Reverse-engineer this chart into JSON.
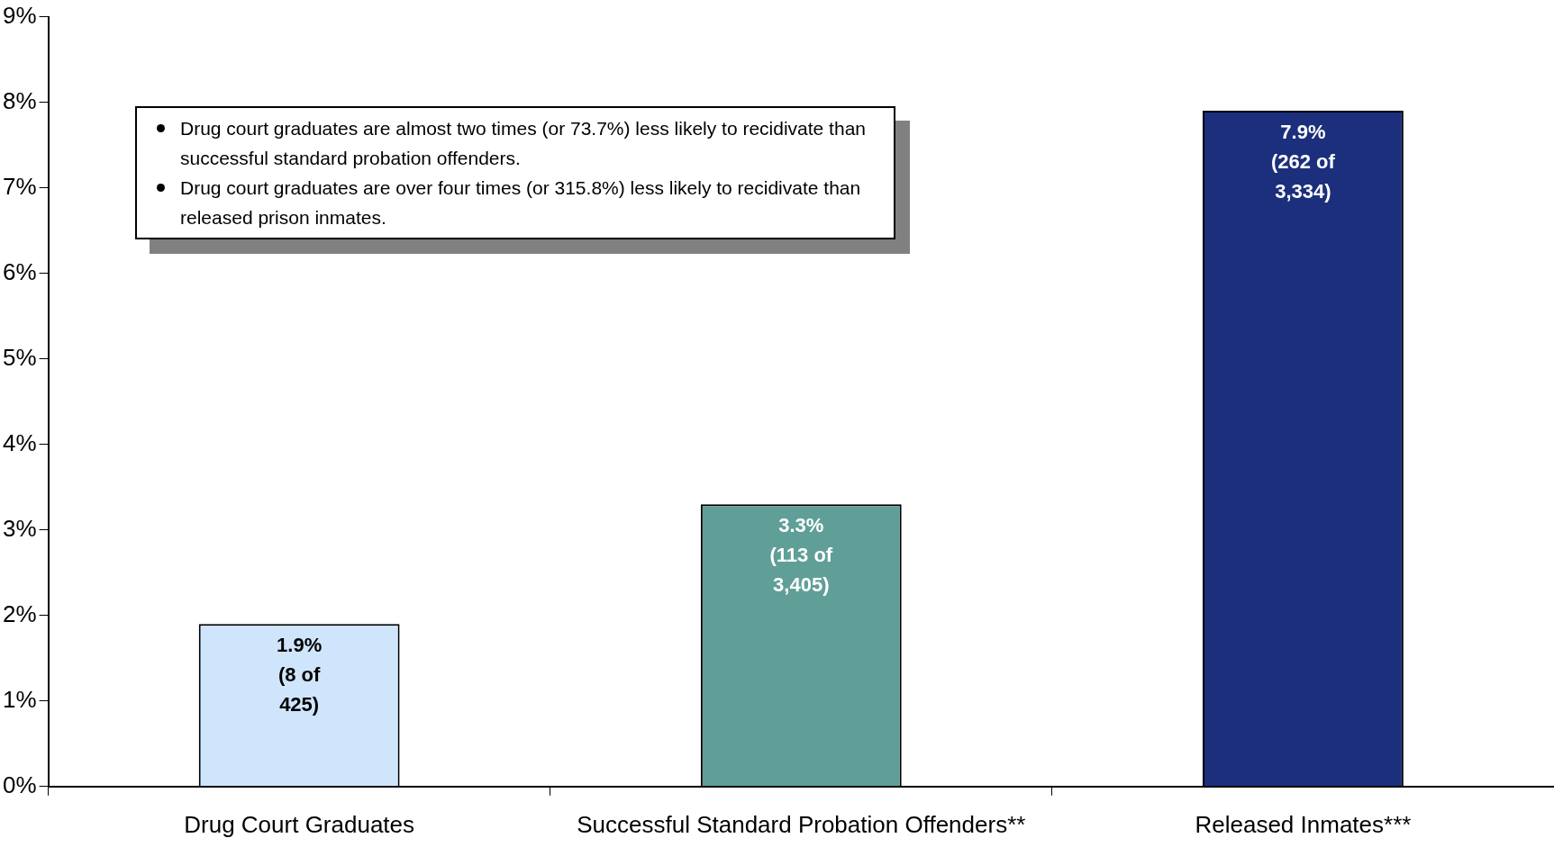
{
  "chart_data": {
    "type": "bar",
    "categories": [
      "Drug Court Graduates",
      "Successful Standard Probation Offenders**",
      "Released Inmates***"
    ],
    "values": [
      1.9,
      3.3,
      7.9
    ],
    "colors": [
      "#cfe5fb",
      "#5f9f97",
      "#1b2f7c"
    ],
    "value_labels": [
      "1.9%\n(8 of\n425)",
      "3.3%\n(113 of\n3,405)",
      "7.9%\n(262 of\n3,334)"
    ],
    "ylim": [
      0,
      9
    ],
    "yticks": [
      {
        "value": 0,
        "label": "0%"
      },
      {
        "value": 1,
        "label": "1%"
      },
      {
        "value": 2,
        "label": "2%"
      },
      {
        "value": 3,
        "label": "3%"
      },
      {
        "value": 4,
        "label": "4%"
      },
      {
        "value": 5,
        "label": "5%"
      },
      {
        "value": 6,
        "label": "6%"
      },
      {
        "value": 7,
        "label": "7%"
      },
      {
        "value": 8,
        "label": "8%"
      },
      {
        "value": 9,
        "label": "9%"
      }
    ],
    "grid": false,
    "legend": false,
    "annotations": [
      "Drug court graduates are almost two times (or 73.7%) less likely to recidivate than successful standard probation offenders.",
      "Drug court graduates are over four times (or 315.8%) less likely to recidivate than released prison inmates."
    ]
  }
}
